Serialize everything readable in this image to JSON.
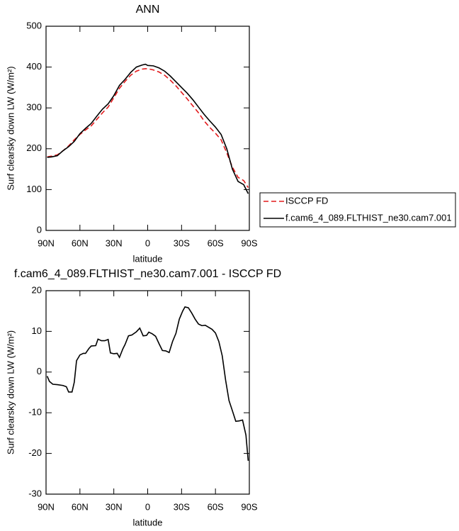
{
  "chart_data": [
    {
      "type": "line",
      "title": "ANN",
      "xlabel": "latitude",
      "ylabel": "Surf clearsky down LW (W/m²)",
      "x": [
        89,
        85,
        80,
        75,
        70,
        65,
        60,
        55,
        50,
        45,
        40,
        35,
        30,
        25,
        20,
        15,
        10,
        5,
        2,
        0,
        -5,
        -10,
        -15,
        -20,
        -25,
        -30,
        -35,
        -40,
        -45,
        -50,
        -55,
        -60,
        -65,
        -70,
        -75,
        -80,
        -85,
        -89
      ],
      "series": [
        {
          "name": "ISCCP FD",
          "color": "#e31a1c",
          "style": "dashed",
          "values": [
            180,
            182,
            185,
            195,
            207,
            222,
            235,
            246,
            256,
            272,
            288,
            302,
            325,
            348,
            365,
            380,
            390,
            395,
            396,
            396,
            393,
            388,
            380,
            368,
            354,
            338,
            322,
            305,
            288,
            268,
            252,
            238,
            222,
            190,
            155,
            130,
            122,
            105
          ]
        },
        {
          "name": "f.cam6_4_089.FLTHIST_ne30.cam7.001",
          "color": "#000000",
          "style": "solid",
          "values": [
            179,
            180,
            183,
            195,
            205,
            218,
            237,
            250,
            262,
            280,
            297,
            310,
            330,
            355,
            370,
            387,
            400,
            405,
            407,
            404,
            403,
            398,
            390,
            378,
            364,
            350,
            336,
            320,
            302,
            284,
            268,
            253,
            235,
            200,
            150,
            120,
            112,
            90
          ]
        }
      ],
      "xlim": [
        90,
        -90
      ],
      "xticks": [
        {
          "value": 90,
          "label": "90N"
        },
        {
          "value": 60,
          "label": "60N"
        },
        {
          "value": 30,
          "label": "30N"
        },
        0,
        {
          "value": -30,
          "label": "30S"
        },
        {
          "value": -60,
          "label": "60S"
        },
        {
          "value": -90,
          "label": "90S"
        }
      ],
      "ylim": [
        0,
        500
      ],
      "yticks": [
        0,
        100,
        200,
        300,
        400,
        500
      ],
      "legend": "right"
    },
    {
      "type": "line",
      "title": "f.cam6_4_089.FLTHIST_ne30.cam7.001 - ISCCP FD",
      "xlabel": "latitude",
      "ylabel": "Surf clearsky down LW (W/m²)",
      "x": [
        89,
        87,
        84,
        80,
        75,
        72,
        70,
        67,
        65,
        63,
        60,
        57,
        55,
        52,
        50,
        46,
        44,
        41,
        38,
        35,
        33,
        30,
        27,
        25,
        22,
        20,
        17,
        14,
        10,
        7,
        4,
        1,
        -1,
        -4,
        -7,
        -10,
        -13,
        -16,
        -19,
        -22,
        -25,
        -28,
        -31,
        -33,
        -36,
        -39,
        -42,
        -45,
        -48,
        -51,
        -54,
        -57,
        -60,
        -63,
        -66,
        -69,
        -72,
        -75,
        -78,
        -81,
        -84,
        -87,
        -89
      ],
      "series": [
        {
          "color": "#000000",
          "style": "solid",
          "values": [
            -1,
            -2.3,
            -3,
            -3.1,
            -3.3,
            -3.6,
            -4.9,
            -4.9,
            -2.5,
            2.8,
            4.2,
            4.6,
            4.6,
            5.8,
            6.4,
            6.5,
            8.1,
            7.7,
            7.7,
            8.0,
            4.7,
            4.5,
            4.6,
            3.6,
            5.7,
            6.8,
            8.9,
            9.1,
            9.9,
            10.8,
            8.9,
            9.0,
            9.8,
            9.4,
            8.8,
            7.0,
            5.3,
            5.2,
            4.8,
            7.5,
            9.5,
            13.0,
            15.0,
            16.0,
            15.8,
            14.5,
            13.0,
            11.8,
            11.4,
            11.5,
            11.0,
            10.5,
            9.6,
            7.5,
            4.0,
            -2.0,
            -7.0,
            -9.5,
            -12.1,
            -12.0,
            -11.8,
            -15.5,
            -21.8
          ]
        }
      ],
      "xlim": [
        90,
        -90
      ],
      "xticks": [
        {
          "value": 90,
          "label": "90N"
        },
        {
          "value": 60,
          "label": "60N"
        },
        {
          "value": 30,
          "label": "30N"
        },
        0,
        {
          "value": -30,
          "label": "30S"
        },
        {
          "value": -60,
          "label": "60S"
        },
        {
          "value": -90,
          "label": "90S"
        }
      ],
      "ylim": [
        -30,
        20
      ],
      "yticks": [
        -30,
        -20,
        -10,
        0,
        10,
        20
      ]
    }
  ]
}
